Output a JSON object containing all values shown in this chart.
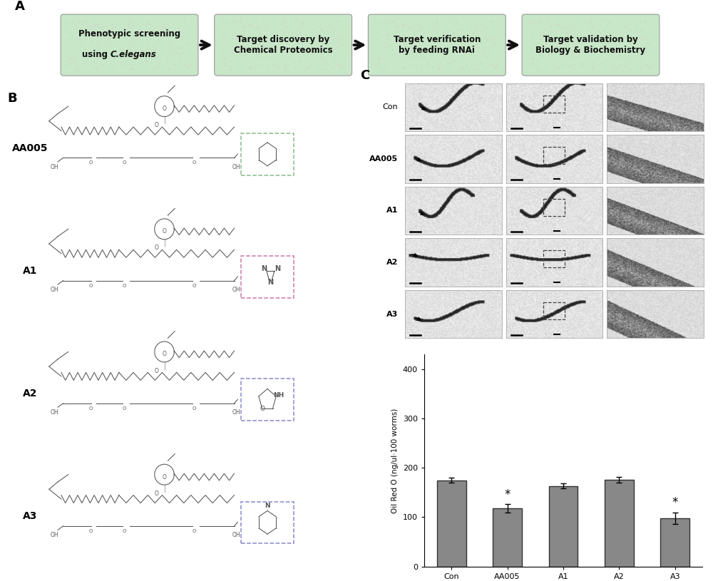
{
  "panel_a": {
    "boxes": [
      "Phenotypic screening\nusing C.elegans",
      "Target discovery by\nChemical Proteomics",
      "Target verification\nby feeding RNAi",
      "Target validation by\nBiology & Biochemistry"
    ],
    "box_facecolor": "#c8e6c8",
    "box_edge_outer": "#b0c8b0",
    "arrow_color": "#111111",
    "text_color": "#111111"
  },
  "panel_b": {
    "label": "B",
    "compounds": [
      "AA005",
      "A1",
      "A2",
      "A3"
    ],
    "dashed_colors": [
      "#cc88aa",
      "#cc88aa",
      "#8888cc",
      "#8888cc"
    ]
  },
  "panel_c": {
    "label": "C",
    "bar_categories": [
      "Con",
      "AA005",
      "A1",
      "A2",
      "A3"
    ],
    "bar_values": [
      175,
      118,
      163,
      176,
      98
    ],
    "bar_errors": [
      5,
      8,
      5,
      6,
      12
    ],
    "bar_color": "#888888",
    "bar_edgecolor": "#333333",
    "ylabel": "Oil Red O (ng/ul·100 worms)",
    "yticks": [
      0,
      100,
      200,
      300,
      400
    ],
    "significant": [
      "AA005",
      "A3"
    ],
    "row_labels": [
      "Con",
      "AA005",
      "A1",
      "A2",
      "A3"
    ]
  },
  "figure_bg": "#ffffff",
  "panel_labels_fontsize": 13
}
